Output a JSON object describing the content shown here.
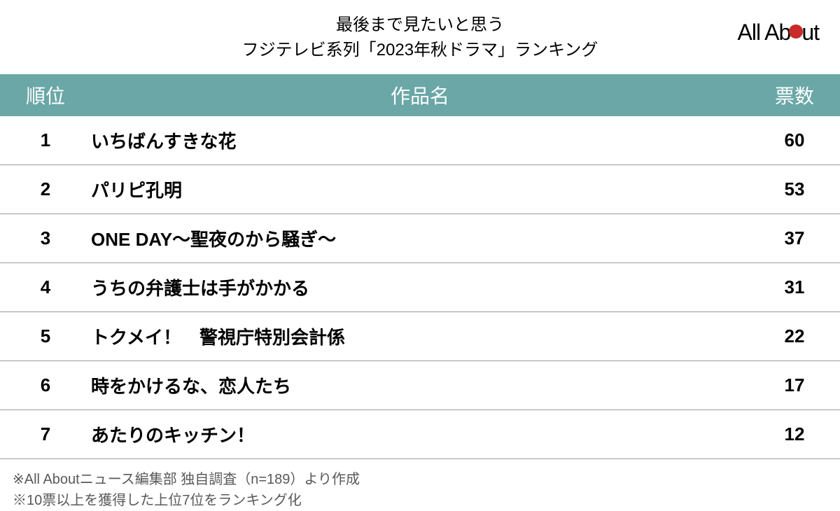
{
  "header": {
    "title_line1": "最後まで見たいと思う",
    "title_line2": "フジテレビ系列「2023年秋ドラマ」ランキング",
    "logo_prefix": "All Ab",
    "logo_suffix": "ut"
  },
  "table": {
    "columns": {
      "rank": "順位",
      "title": "作品名",
      "votes": "票数"
    },
    "rows": [
      {
        "rank": "1",
        "title": "いちばんすきな花",
        "votes": "60"
      },
      {
        "rank": "2",
        "title": "パリピ孔明",
        "votes": "53"
      },
      {
        "rank": "3",
        "title": "ONE DAY〜聖夜のから騒ぎ〜",
        "votes": "37"
      },
      {
        "rank": "4",
        "title": "うちの弁護士は手がかかる",
        "votes": "31"
      },
      {
        "rank": "5",
        "title": "トクメイ！　警視庁特別会計係",
        "votes": "22"
      },
      {
        "rank": "6",
        "title": "時をかけるな、恋人たち",
        "votes": "17"
      },
      {
        "rank": "7",
        "title": "あたりのキッチン！",
        "votes": "12"
      }
    ]
  },
  "footer": {
    "note1": "※All Aboutニュース編集部 独自調査（n=189）より作成",
    "note2": "※10票以上を獲得した上位7位をランキング化"
  },
  "style": {
    "header_bg": "#6ba7a7",
    "header_text": "#ffffff",
    "row_border": "#999999",
    "text_color": "#000000",
    "footer_color": "#595959",
    "logo_dot_color": "#c92a2a",
    "title_fontsize": 24,
    "header_fontsize": 28,
    "cell_fontsize": 26,
    "footer_fontsize": 20
  }
}
